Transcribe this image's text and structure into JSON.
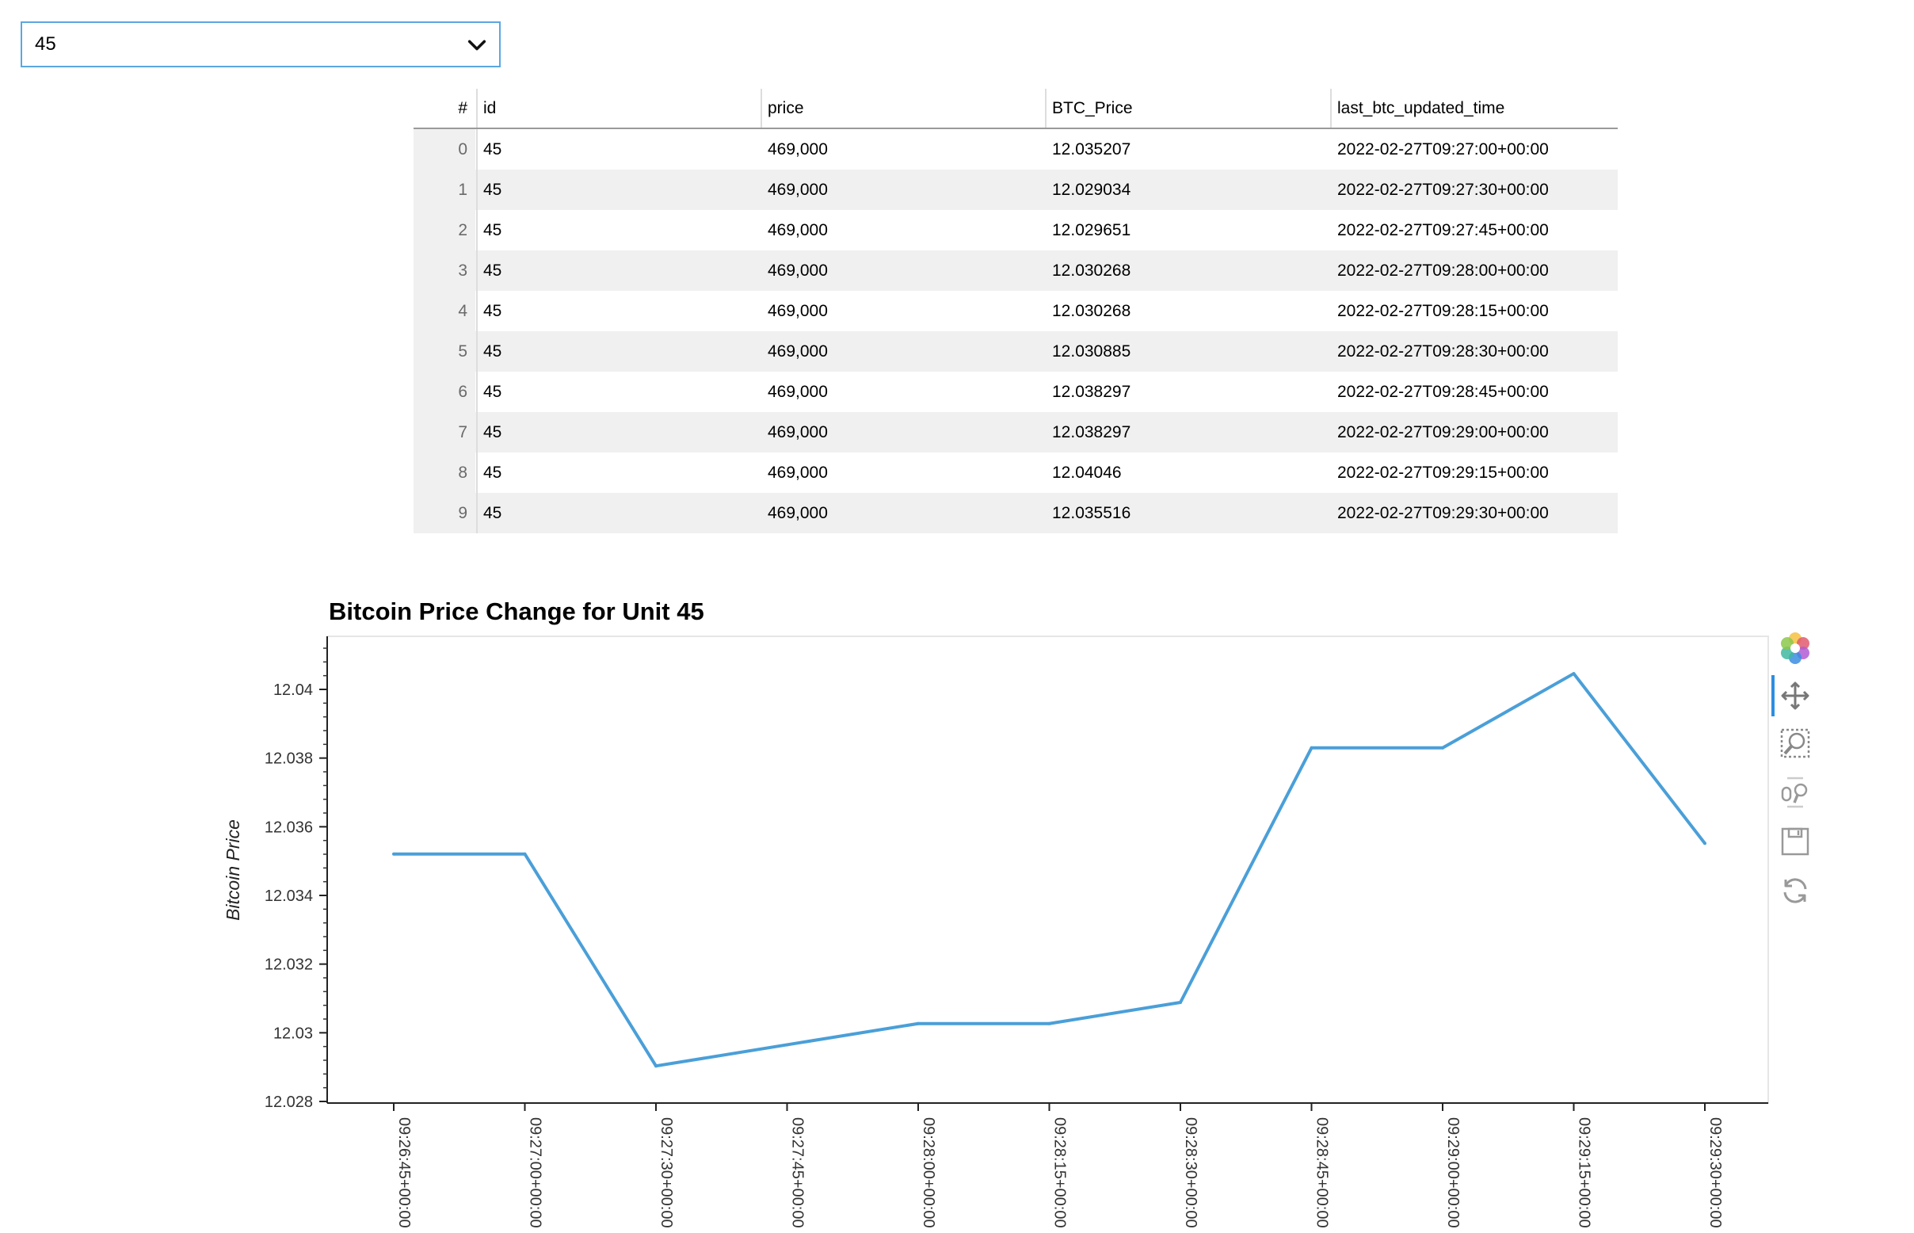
{
  "select": {
    "value": "45"
  },
  "table": {
    "headers": {
      "index": "#",
      "id": "id",
      "price": "price",
      "btc": "BTC_Price",
      "time": "last_btc_updated_time"
    },
    "rows": [
      {
        "index": "0",
        "id": "45",
        "price": "469,000",
        "btc": "12.035207",
        "time": "2022-02-27T09:27:00+00:00"
      },
      {
        "index": "1",
        "id": "45",
        "price": "469,000",
        "btc": "12.029034",
        "time": "2022-02-27T09:27:30+00:00"
      },
      {
        "index": "2",
        "id": "45",
        "price": "469,000",
        "btc": "12.029651",
        "time": "2022-02-27T09:27:45+00:00"
      },
      {
        "index": "3",
        "id": "45",
        "price": "469,000",
        "btc": "12.030268",
        "time": "2022-02-27T09:28:00+00:00"
      },
      {
        "index": "4",
        "id": "45",
        "price": "469,000",
        "btc": "12.030268",
        "time": "2022-02-27T09:28:15+00:00"
      },
      {
        "index": "5",
        "id": "45",
        "price": "469,000",
        "btc": "12.030885",
        "time": "2022-02-27T09:28:30+00:00"
      },
      {
        "index": "6",
        "id": "45",
        "price": "469,000",
        "btc": "12.038297",
        "time": "2022-02-27T09:28:45+00:00"
      },
      {
        "index": "7",
        "id": "45",
        "price": "469,000",
        "btc": "12.038297",
        "time": "2022-02-27T09:29:00+00:00"
      },
      {
        "index": "8",
        "id": "45",
        "price": "469,000",
        "btc": "12.04046",
        "time": "2022-02-27T09:29:15+00:00"
      },
      {
        "index": "9",
        "id": "45",
        "price": "469,000",
        "btc": "12.035516",
        "time": "2022-02-27T09:29:30+00:00"
      }
    ]
  },
  "toolbar": {
    "tools": [
      "bokeh-logo-icon",
      "pan-icon",
      "box-zoom-icon",
      "wheel-zoom-icon",
      "save-icon",
      "reset-icon"
    ],
    "active_tool": "pan-icon"
  },
  "chart_data": {
    "type": "line",
    "title": "Bitcoin Price Change for Unit 45",
    "xlabel": "",
    "ylabel": "Bitcoin Price",
    "x": [
      "09:26:45+00:00",
      "09:27:00+00:00",
      "09:27:30+00:00",
      "09:27:45+00:00",
      "09:28:00+00:00",
      "09:28:15+00:00",
      "09:28:30+00:00",
      "09:28:45+00:00",
      "09:29:00+00:00",
      "09:29:15+00:00",
      "09:29:30+00:00"
    ],
    "y": [
      12.035207,
      12.035207,
      12.029034,
      12.029651,
      12.030268,
      12.030268,
      12.030885,
      12.038297,
      12.038297,
      12.04046,
      12.035516
    ],
    "ylim": [
      12.028,
      12.0416
    ],
    "yticks": [
      12.028,
      12.03,
      12.032,
      12.034,
      12.036,
      12.038,
      12.04
    ],
    "ytick_labels": [
      "12.028",
      "12.03",
      "12.032",
      "12.034",
      "12.036",
      "12.038",
      "12.04"
    ],
    "line_color": "#4a9fd8",
    "grid": false,
    "legend": "none"
  }
}
